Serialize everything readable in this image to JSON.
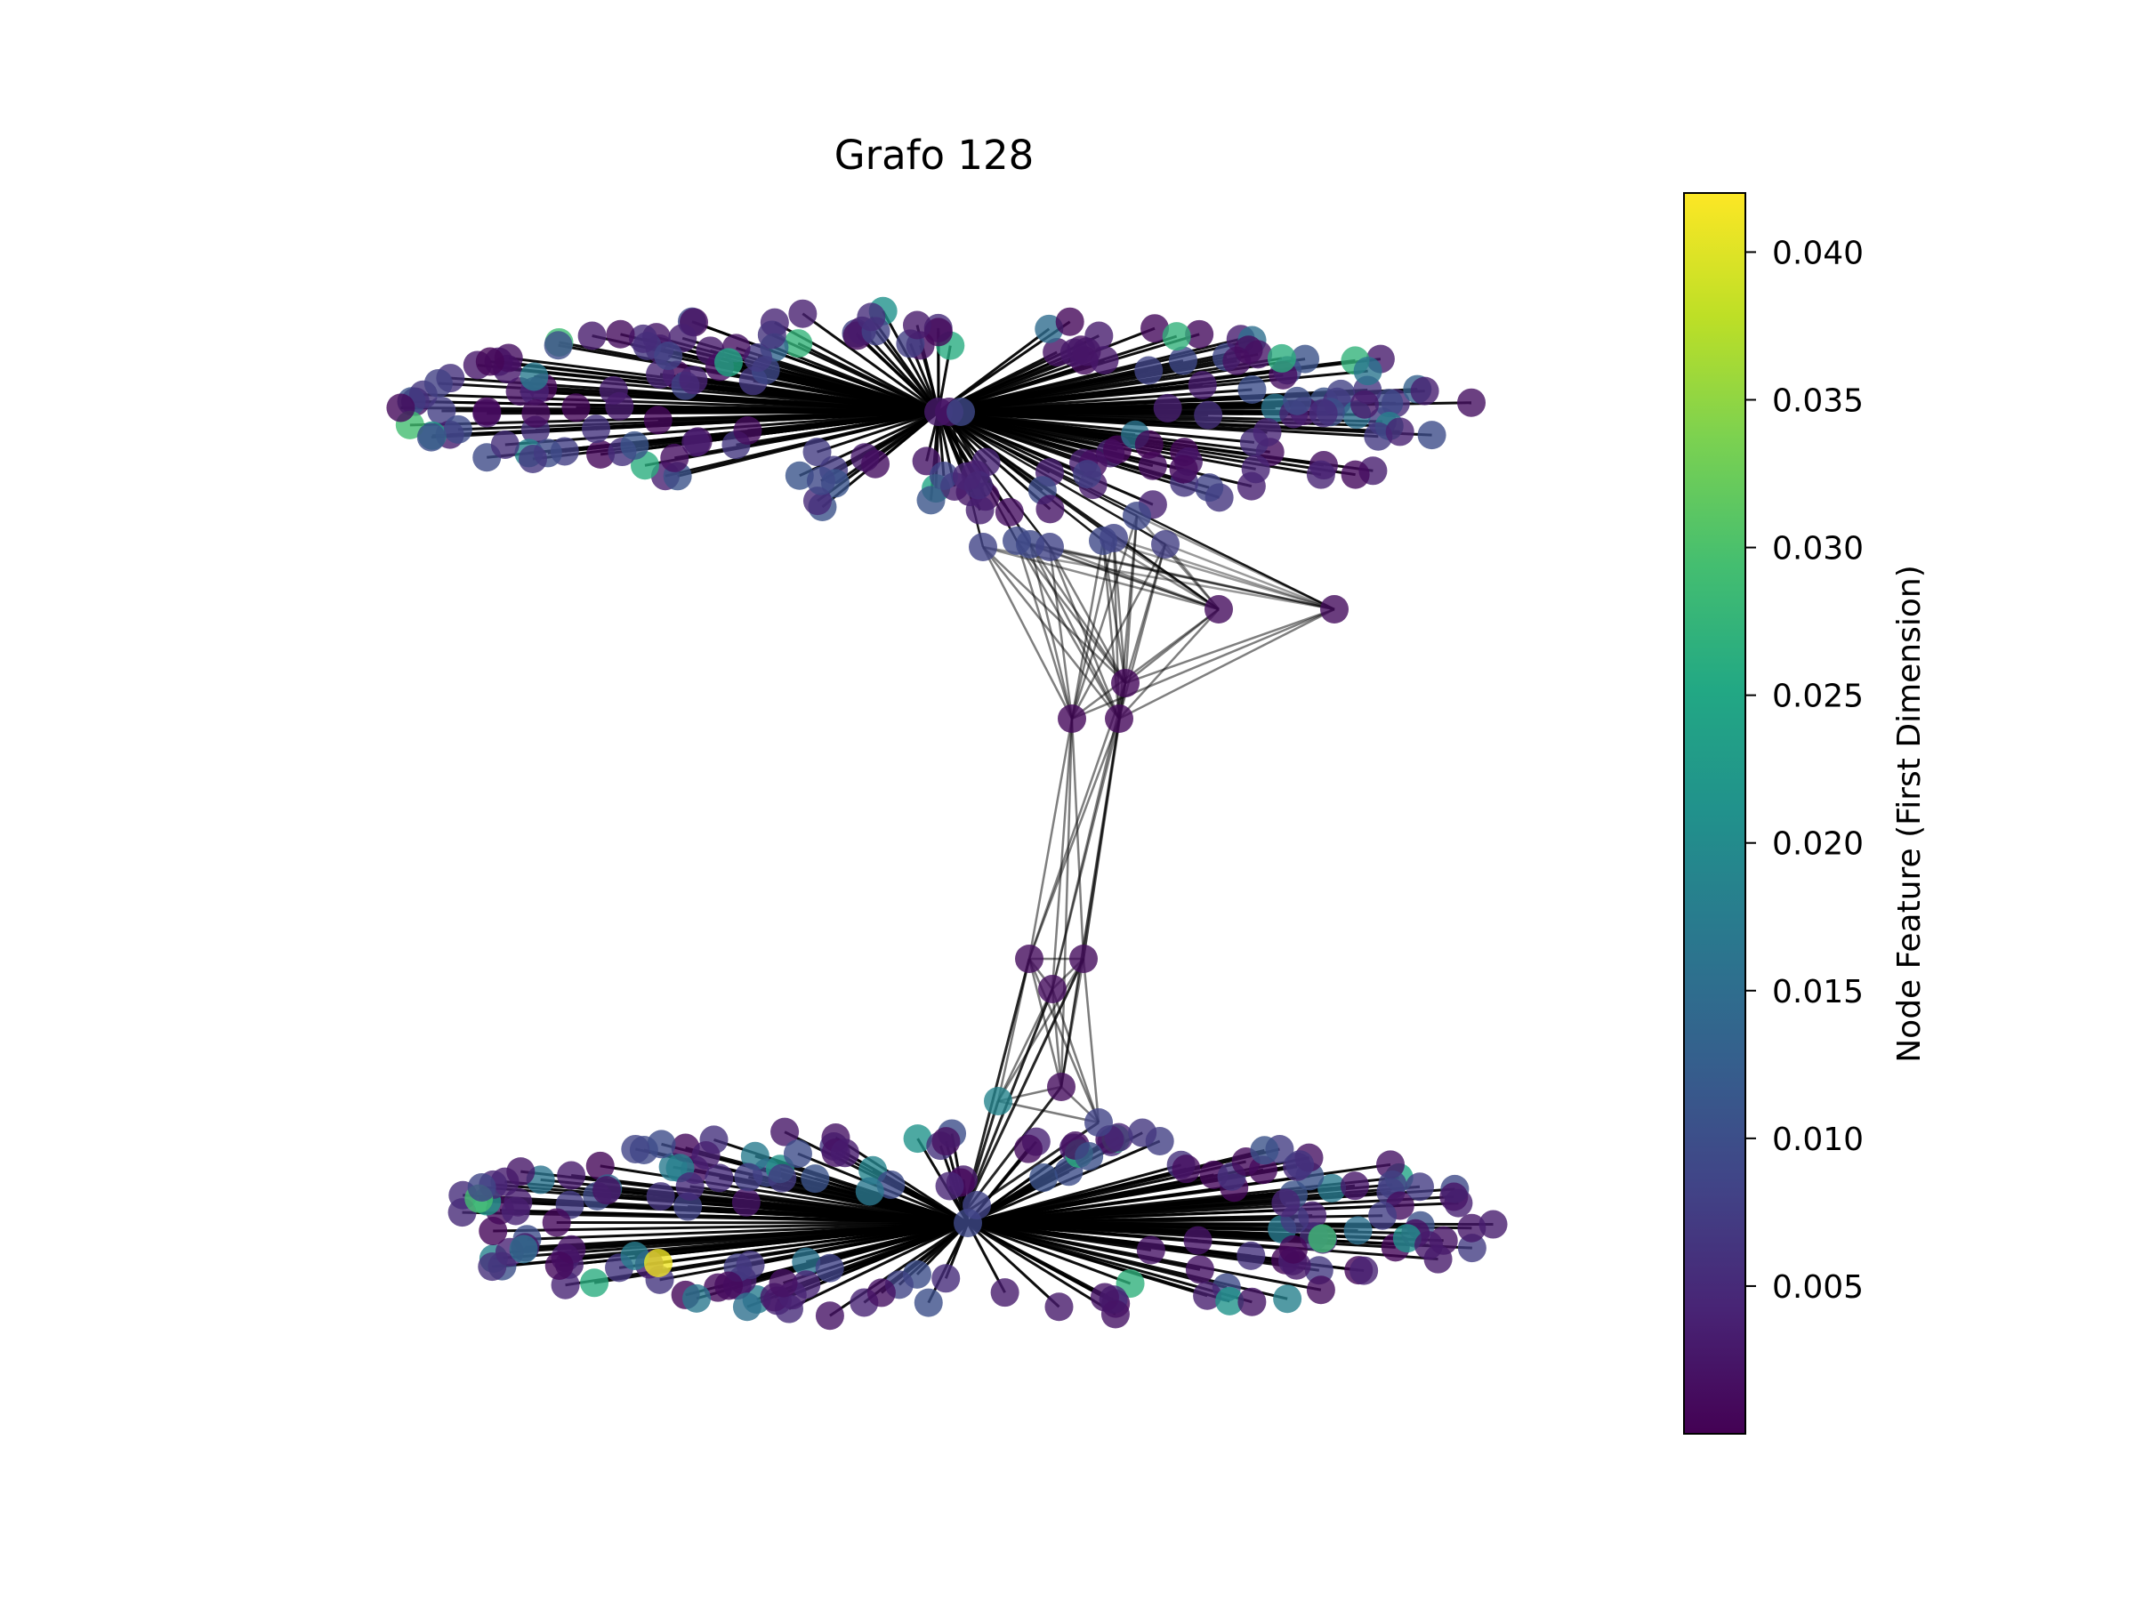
{
  "title": "Grafo 128",
  "colorbar": {
    "label": "Node Feature (First Dimension)",
    "colormap": "viridis",
    "range": [
      0.0,
      0.042
    ],
    "ticks": [
      "0.005",
      "0.010",
      "0.015",
      "0.020",
      "0.025",
      "0.030",
      "0.035",
      "0.040"
    ],
    "tick_values": [
      0.005,
      0.01,
      0.015,
      0.02,
      0.025,
      0.03,
      0.035,
      0.04
    ]
  },
  "graph": {
    "node_count_approx": 380,
    "hubs": 2,
    "edge_color": "#000000",
    "node_alpha": 0.8,
    "notes_visible": []
  }
}
